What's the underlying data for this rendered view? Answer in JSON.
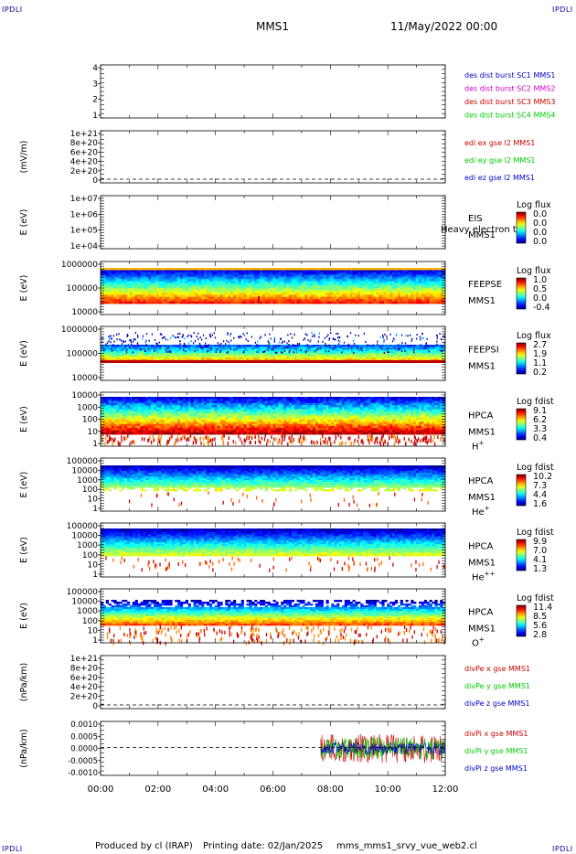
{
  "header": {
    "spacecraft": "MMS1",
    "datetime": "11/May/2022 00:00"
  },
  "corners": {
    "tl": "IPDLI",
    "tr": "IPDLI",
    "bl": "IPDLI",
    "br": "IPDLI"
  },
  "footer": {
    "producer": "Produced by cl (IRAP)",
    "printing": "Printing date: 02/Jan/2025",
    "file": "mms_mms1_srvy_vue_web2.cl"
  },
  "colors": {
    "c1": "#0000cc",
    "c2": "#cc00cc",
    "c3": "#cc0000",
    "c4": "#00cc00",
    "red": "#cc0000",
    "green": "#00cc00",
    "blue": "#0000cc"
  },
  "chart_data": [
    {
      "type": "line",
      "ylabel": "",
      "ytick_labels": [
        "4",
        "3",
        "2",
        "1"
      ],
      "legend": [
        "des dist burst SC1 MMS1",
        "des dist burst SC2 MMS2",
        "des dist burst SC3 MMS3",
        "des dist burst SC4 MMS4"
      ]
    },
    {
      "type": "line",
      "ylabel": "(mV/m)",
      "ytick_labels": [
        "1e+21",
        "8e+20",
        "6e+20",
        "4e+20",
        "2e+20",
        "0"
      ],
      "legend": [
        "edi ex gse l2 MMS1",
        "edi ey gse l2 MMS1",
        "edi ez gse l2 MMS1"
      ]
    },
    {
      "type": "heatmap",
      "ylabel": "E (eV)",
      "ytick_labels": [
        "1e+07",
        "1e+06",
        "1e+05",
        "1e+04"
      ],
      "instrument": "EIS",
      "overlay_text": "Heavy electron to",
      "sc": "MMS1",
      "cb_title": "Log flux",
      "cb_labels": [
        "0.0",
        "0.0",
        "0.0",
        "0.0"
      ]
    },
    {
      "type": "heatmap",
      "ylabel": "E (eV)",
      "ytick_labels": [
        "1000000",
        "100000",
        "10000"
      ],
      "instrument": "FEEPSE",
      "sc": "MMS1",
      "cb_title": "Log flux",
      "cb_labels": [
        "1.0",
        "0.5",
        "0.0",
        "-0.4"
      ]
    },
    {
      "type": "heatmap",
      "ylabel": "E (eV)",
      "ytick_labels": [
        "1000000",
        "100000",
        "10000"
      ],
      "instrument": "FEEPSI",
      "sc": "MMS1",
      "cb_title": "Log flux",
      "cb_labels": [
        "2.7",
        "1.9",
        "1.1",
        "0.2"
      ]
    },
    {
      "type": "heatmap",
      "ylabel": "E (eV)",
      "ytick_labels": [
        "10000",
        "1000",
        "100",
        "10",
        "1"
      ],
      "instrument": "HPCA",
      "sc": "MMS1",
      "species": "H",
      "charge": "+",
      "cb_title": "Log fdist",
      "cb_labels": [
        "9.1",
        "6.2",
        "3.3",
        "0.4"
      ]
    },
    {
      "type": "heatmap",
      "ylabel": "E (eV)",
      "ytick_labels": [
        "100000",
        "10000",
        "1000",
        "100",
        "10",
        "1"
      ],
      "instrument": "HPCA",
      "sc": "MMS1",
      "species": "He",
      "charge": "+",
      "cb_title": "Log fdist",
      "cb_labels": [
        "10.2",
        "7.3",
        "4.4",
        "1.6"
      ]
    },
    {
      "type": "heatmap",
      "ylabel": "E (eV)",
      "ytick_labels": [
        "100000",
        "10000",
        "1000",
        "100",
        "10",
        "1"
      ],
      "instrument": "HPCA",
      "sc": "MMS1",
      "species": "He",
      "charge": "++",
      "cb_title": "Log fdist",
      "cb_labels": [
        "9.9",
        "7.0",
        "4.1",
        "1.3"
      ]
    },
    {
      "type": "heatmap",
      "ylabel": "E (eV)",
      "ytick_labels": [
        "100000",
        "10000",
        "1000",
        "100",
        "10",
        "1"
      ],
      "instrument": "HPCA",
      "sc": "MMS1",
      "species": "O",
      "charge": "+",
      "cb_title": "Log fdist",
      "cb_labels": [
        "11.4",
        "8.5",
        "5.6",
        "2.8"
      ]
    },
    {
      "type": "line",
      "ylabel": "(nPa/km)",
      "ytick_labels": [
        "1e+21",
        "8e+20",
        "6e+20",
        "4e+20",
        "2e+20",
        "0"
      ],
      "legend": [
        "divPe x gse MMS1",
        "divPe y gse MMS1",
        "divPe z gse MMS1"
      ]
    },
    {
      "type": "line",
      "ylabel": "(nPa/km)",
      "ytick_labels": [
        "0.0010",
        "0.0005",
        "0.0000",
        "-0.0005",
        "-0.0010"
      ],
      "legend": [
        "divPi x gse MMS1",
        "divPi y gse MMS1",
        "divPi z gse MMS1"
      ],
      "data_start": "07:40",
      "ylim": [
        -0.001,
        0.001
      ]
    }
  ],
  "x_axis": {
    "labels": [
      "00:00",
      "02:00",
      "04:00",
      "06:00",
      "08:00",
      "10:00",
      "12:00"
    ]
  }
}
